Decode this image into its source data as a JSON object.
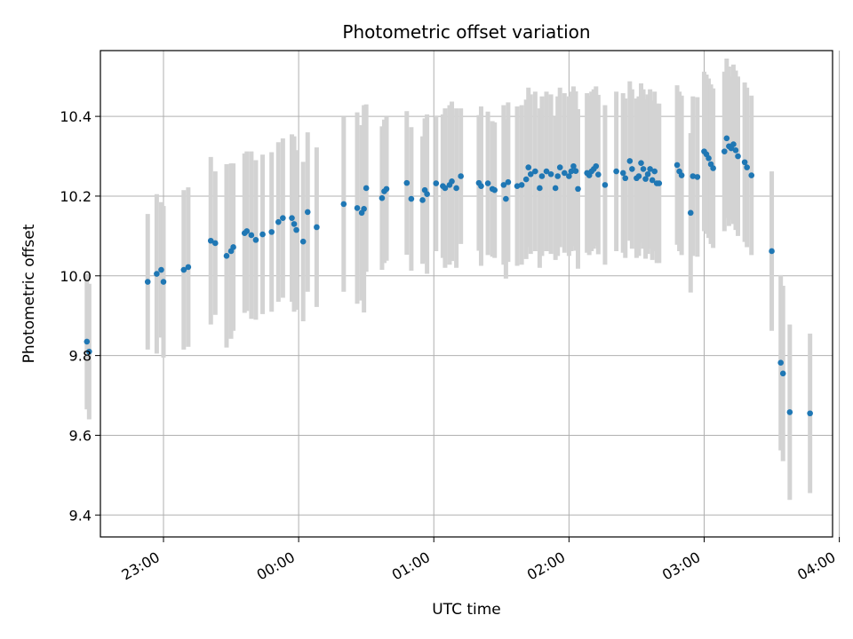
{
  "chart_data": {
    "type": "scatter",
    "title": "Photometric offset variation",
    "xlabel": "UTC time",
    "ylabel": "Photometric offset",
    "x_unit": "minutes relative to 00:00 UTC",
    "xlim": [
      -88,
      237
    ],
    "ylim": [
      9.345,
      10.565
    ],
    "xticks": [
      {
        "value": -60,
        "label": "23:00"
      },
      {
        "value": 0,
        "label": "00:00"
      },
      {
        "value": 60,
        "label": "01:00"
      },
      {
        "value": 120,
        "label": "02:00"
      },
      {
        "value": 180,
        "label": "03:00"
      },
      {
        "value": 240,
        "label": "04:00"
      }
    ],
    "yticks": [
      {
        "value": 9.4,
        "label": "9.4"
      },
      {
        "value": 9.6,
        "label": "9.6"
      },
      {
        "value": 9.8,
        "label": "9.8"
      },
      {
        "value": 10.0,
        "label": "10.0"
      },
      {
        "value": 10.2,
        "label": "10.2"
      },
      {
        "value": 10.4,
        "label": "10.4"
      }
    ],
    "grid": true,
    "marker_color": "#1f77b4",
    "errorbar_color": "#d3d3d3",
    "points": [
      [
        -94,
        9.835,
        0.17
      ],
      [
        -93,
        9.81,
        0.17
      ],
      [
        -67,
        9.985,
        0.17
      ],
      [
        -63,
        10.005,
        0.2
      ],
      [
        -61,
        10.015,
        0.17
      ],
      [
        -60,
        9.985,
        0.19
      ],
      [
        -51,
        10.015,
        0.2
      ],
      [
        -49,
        10.022,
        0.2
      ],
      [
        -39,
        10.088,
        0.21
      ],
      [
        -37,
        10.082,
        0.18
      ],
      [
        -32,
        10.05,
        0.23
      ],
      [
        -30,
        10.062,
        0.22
      ],
      [
        -29,
        10.072,
        0.21
      ],
      [
        -24,
        10.107,
        0.2
      ],
      [
        -23,
        10.112,
        0.2
      ],
      [
        -21,
        10.102,
        0.21
      ],
      [
        -19,
        10.09,
        0.2
      ],
      [
        -16,
        10.104,
        0.2
      ],
      [
        -12,
        10.11,
        0.2
      ],
      [
        -9,
        10.135,
        0.2
      ],
      [
        -7,
        10.145,
        0.2
      ],
      [
        -3,
        10.145,
        0.21
      ],
      [
        -2,
        10.13,
        0.22
      ],
      [
        -1,
        10.115,
        0.2
      ],
      [
        2,
        10.086,
        0.2
      ],
      [
        4,
        10.16,
        0.2
      ],
      [
        8,
        10.122,
        0.2
      ],
      [
        20,
        10.18,
        0.22
      ],
      [
        26,
        10.17,
        0.24
      ],
      [
        28,
        10.158,
        0.22
      ],
      [
        29,
        10.168,
        0.26
      ],
      [
        30,
        10.22,
        0.21
      ],
      [
        37,
        10.195,
        0.18
      ],
      [
        38,
        10.212,
        0.18
      ],
      [
        39,
        10.218,
        0.18
      ],
      [
        48,
        10.233,
        0.18
      ],
      [
        50,
        10.193,
        0.18
      ],
      [
        55,
        10.19,
        0.16
      ],
      [
        56,
        10.215,
        0.18
      ],
      [
        57,
        10.205,
        0.2
      ],
      [
        61,
        10.232,
        0.17
      ],
      [
        64,
        10.225,
        0.18
      ],
      [
        65,
        10.22,
        0.2
      ],
      [
        67,
        10.228,
        0.2
      ],
      [
        68,
        10.237,
        0.2
      ],
      [
        70,
        10.22,
        0.2
      ],
      [
        72,
        10.25,
        0.17
      ],
      [
        80,
        10.233,
        0.17
      ],
      [
        81,
        10.225,
        0.2
      ],
      [
        84,
        10.232,
        0.18
      ],
      [
        86,
        10.218,
        0.17
      ],
      [
        87,
        10.215,
        0.17
      ],
      [
        91,
        10.228,
        0.2
      ],
      [
        92,
        10.193,
        0.2
      ],
      [
        93,
        10.235,
        0.2
      ],
      [
        97,
        10.225,
        0.2
      ],
      [
        99,
        10.228,
        0.2
      ],
      [
        101,
        10.242,
        0.2
      ],
      [
        102,
        10.272,
        0.2
      ],
      [
        103,
        10.255,
        0.2
      ],
      [
        105,
        10.262,
        0.2
      ],
      [
        107,
        10.22,
        0.2
      ],
      [
        108,
        10.25,
        0.2
      ],
      [
        110,
        10.262,
        0.2
      ],
      [
        112,
        10.255,
        0.2
      ],
      [
        114,
        10.22,
        0.18
      ],
      [
        115,
        10.25,
        0.2
      ],
      [
        116,
        10.272,
        0.2
      ],
      [
        118,
        10.258,
        0.2
      ],
      [
        120,
        10.25,
        0.2
      ],
      [
        121,
        10.262,
        0.2
      ],
      [
        122,
        10.275,
        0.2
      ],
      [
        123,
        10.263,
        0.2
      ],
      [
        124,
        10.218,
        0.2
      ],
      [
        128,
        10.258,
        0.2
      ],
      [
        129,
        10.252,
        0.2
      ],
      [
        130,
        10.262,
        0.2
      ],
      [
        131,
        10.268,
        0.2
      ],
      [
        132,
        10.275,
        0.2
      ],
      [
        133,
        10.254,
        0.2
      ],
      [
        136,
        10.228,
        0.2
      ],
      [
        141,
        10.262,
        0.2
      ],
      [
        144,
        10.258,
        0.2
      ],
      [
        145,
        10.245,
        0.2
      ],
      [
        147,
        10.288,
        0.2
      ],
      [
        148,
        10.268,
        0.2
      ],
      [
        150,
        10.245,
        0.2
      ],
      [
        151,
        10.25,
        0.2
      ],
      [
        152,
        10.283,
        0.2
      ],
      [
        153,
        10.268,
        0.2
      ],
      [
        154,
        10.243,
        0.2
      ],
      [
        155,
        10.255,
        0.2
      ],
      [
        156,
        10.268,
        0.2
      ],
      [
        157,
        10.24,
        0.2
      ],
      [
        158,
        10.262,
        0.2
      ],
      [
        159,
        10.232,
        0.2
      ],
      [
        160,
        10.232,
        0.2
      ],
      [
        168,
        10.278,
        0.2
      ],
      [
        169,
        10.262,
        0.2
      ],
      [
        170,
        10.252,
        0.2
      ],
      [
        174,
        10.158,
        0.2
      ],
      [
        175,
        10.25,
        0.2
      ],
      [
        177,
        10.248,
        0.2
      ],
      [
        180,
        10.312,
        0.2
      ],
      [
        181,
        10.305,
        0.2
      ],
      [
        182,
        10.295,
        0.2
      ],
      [
        183,
        10.28,
        0.2
      ],
      [
        184,
        10.27,
        0.2
      ],
      [
        189,
        10.312,
        0.2
      ],
      [
        190,
        10.345,
        0.2
      ],
      [
        191,
        10.325,
        0.2
      ],
      [
        192,
        10.32,
        0.18
      ],
      [
        193,
        10.33,
        0.2
      ],
      [
        194,
        10.315,
        0.2
      ],
      [
        195,
        10.3,
        0.2
      ],
      [
        198,
        10.285,
        0.2
      ],
      [
        199,
        10.272,
        0.2
      ],
      [
        201,
        10.252,
        0.2
      ],
      [
        210,
        10.062,
        0.2
      ],
      [
        214,
        9.782,
        0.22
      ],
      [
        215,
        9.755,
        0.22
      ],
      [
        218,
        9.658,
        0.22
      ],
      [
        227,
        9.655,
        0.2
      ]
    ]
  }
}
